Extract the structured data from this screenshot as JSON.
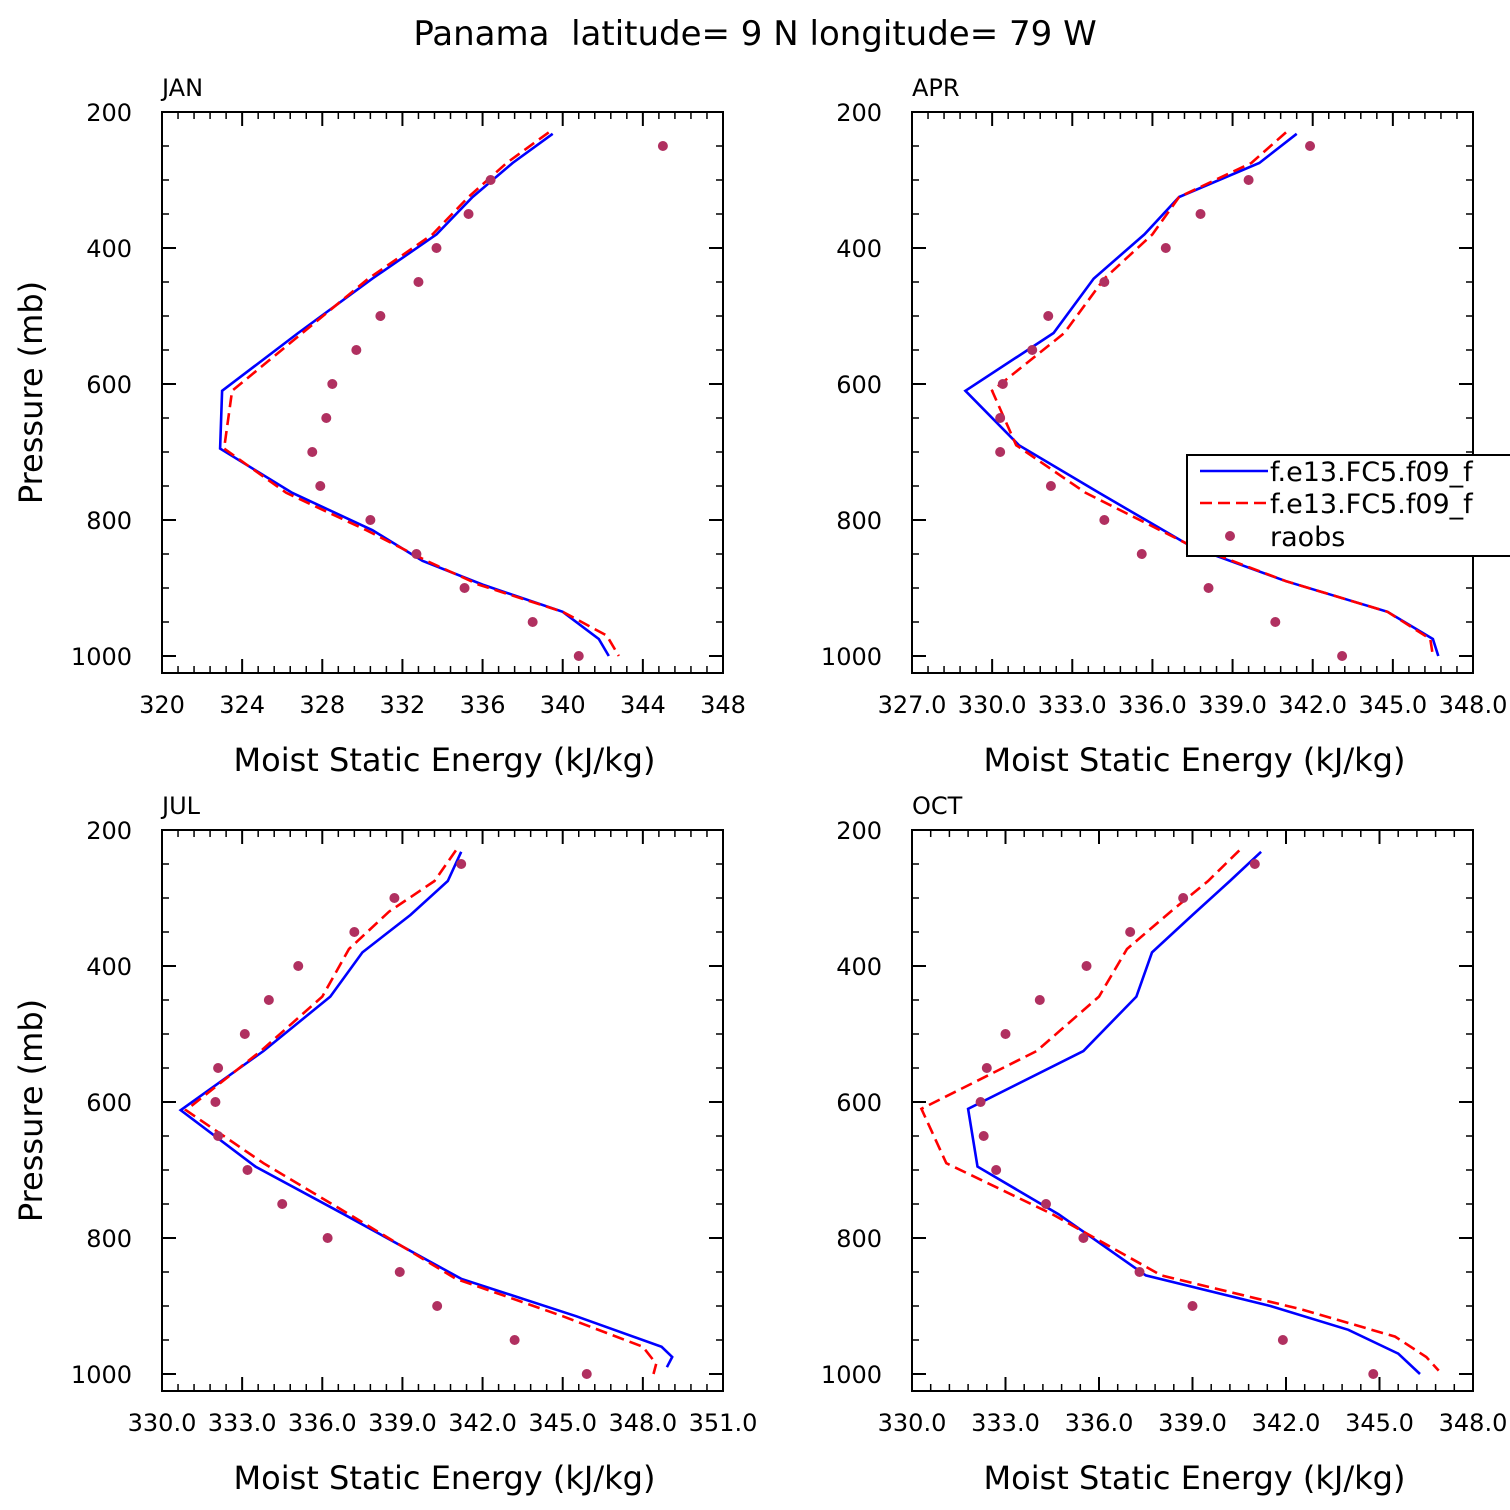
{
  "figure_title": "Panama  latitude= 9 N longitude= 79 W",
  "colors": {
    "model_1": "#0000ff",
    "model_2": "#ff0000",
    "raobs": "#b03060",
    "axes": "#000000"
  },
  "legend": {
    "entries": [
      "f.e13.FC5.f09_f",
      "f.e13.FC5.f09_f",
      "raobs"
    ]
  },
  "chart_data": [
    {
      "type": "line",
      "panel": "JAN",
      "title": "JAN",
      "xlabel": "Moist Static Energy (kJ/kg)",
      "ylabel": "Pressure (mb)",
      "xlim": [
        320,
        348
      ],
      "ylim": [
        1025,
        200
      ],
      "xticks": [
        320,
        324,
        328,
        332,
        336,
        340,
        344,
        348
      ],
      "xtick_labels": [
        "320",
        "324",
        "328",
        "332",
        "336",
        "340",
        "344",
        "348"
      ],
      "yticks": [
        200,
        400,
        600,
        800,
        1000
      ],
      "ytick_labels": [
        "200",
        "400",
        "600",
        "800",
        "1000"
      ],
      "series": [
        {
          "name": "f.e13.FC5.f09_f",
          "style": "solid",
          "points": [
            [
              339.5,
              232
            ],
            [
              337.5,
              275
            ],
            [
              335.5,
              325
            ],
            [
              333.7,
              380
            ],
            [
              330.5,
              445
            ],
            [
              326.8,
              525
            ],
            [
              323.0,
              610
            ],
            [
              322.9,
              695
            ],
            [
              326.5,
              760
            ],
            [
              330.5,
              815
            ],
            [
              333.0,
              860
            ],
            [
              336.0,
              895
            ],
            [
              340.0,
              935
            ],
            [
              341.8,
              975
            ],
            [
              342.3,
              1000
            ]
          ]
        },
        {
          "name": "f.e13.FC5.f09_f",
          "style": "dashed",
          "points": [
            [
              339.3,
              230
            ],
            [
              337.2,
              275
            ],
            [
              335.3,
              325
            ],
            [
              333.5,
              380
            ],
            [
              330.3,
              445
            ],
            [
              327.0,
              525
            ],
            [
              323.5,
              610
            ],
            [
              323.1,
              695
            ],
            [
              326.2,
              760
            ],
            [
              330.2,
              815
            ],
            [
              333.2,
              860
            ],
            [
              335.8,
              895
            ],
            [
              340.0,
              935
            ],
            [
              342.2,
              970
            ],
            [
              342.8,
              1000
            ]
          ]
        },
        {
          "name": "raobs",
          "style": "markers",
          "points": [
            [
              345.0,
              250
            ],
            [
              336.4,
              300
            ],
            [
              335.3,
              350
            ],
            [
              333.7,
              400
            ],
            [
              332.8,
              450
            ],
            [
              330.9,
              500
            ],
            [
              329.7,
              550
            ],
            [
              328.5,
              600
            ],
            [
              328.2,
              650
            ],
            [
              327.5,
              700
            ],
            [
              327.9,
              750
            ],
            [
              330.4,
              800
            ],
            [
              332.7,
              850
            ],
            [
              335.1,
              900
            ],
            [
              338.5,
              950
            ],
            [
              340.8,
              1000
            ]
          ]
        }
      ]
    },
    {
      "type": "line",
      "panel": "APR",
      "title": "APR",
      "xlabel": "Moist Static Energy (kJ/kg)",
      "ylabel": "",
      "xlim": [
        327,
        348
      ],
      "ylim": [
        1025,
        200
      ],
      "xticks": [
        327,
        330,
        333,
        336,
        339,
        342,
        345,
        348
      ],
      "xtick_labels": [
        "327.0",
        "330.0",
        "333.0",
        "336.0",
        "339.0",
        "342.0",
        "345.0",
        "348.0"
      ],
      "yticks": [
        200,
        400,
        600,
        800,
        1000
      ],
      "ytick_labels": [
        "200",
        "400",
        "600",
        "800",
        "1000"
      ],
      "series": [
        {
          "name": "f.e13.FC5.f09_f",
          "style": "solid",
          "points": [
            [
              341.4,
              232
            ],
            [
              340.0,
              275
            ],
            [
              337.0,
              325
            ],
            [
              335.7,
              380
            ],
            [
              333.8,
              445
            ],
            [
              332.3,
              525
            ],
            [
              329.0,
              610
            ],
            [
              331.0,
              690
            ],
            [
              334.0,
              760
            ],
            [
              337.5,
              840
            ],
            [
              341.0,
              890
            ],
            [
              344.8,
              935
            ],
            [
              346.5,
              975
            ],
            [
              346.7,
              1000
            ]
          ]
        },
        {
          "name": "f.e13.FC5.f09_f",
          "style": "dashed",
          "points": [
            [
              341.0,
              230
            ],
            [
              339.7,
              275
            ],
            [
              337.0,
              325
            ],
            [
              336.0,
              380
            ],
            [
              334.2,
              445
            ],
            [
              332.7,
              525
            ],
            [
              330.0,
              610
            ],
            [
              330.9,
              690
            ],
            [
              333.5,
              760
            ],
            [
              337.3,
              835
            ],
            [
              341.0,
              890
            ],
            [
              344.8,
              935
            ],
            [
              346.4,
              975
            ],
            [
              346.5,
              1000
            ]
          ]
        },
        {
          "name": "raobs",
          "style": "markers",
          "points": [
            [
              341.9,
              250
            ],
            [
              339.6,
              300
            ],
            [
              337.8,
              350
            ],
            [
              336.5,
              400
            ],
            [
              334.2,
              450
            ],
            [
              332.1,
              500
            ],
            [
              331.5,
              550
            ],
            [
              330.4,
              600
            ],
            [
              330.3,
              650
            ],
            [
              330.3,
              700
            ],
            [
              332.2,
              750
            ],
            [
              334.2,
              800
            ],
            [
              335.6,
              850
            ],
            [
              338.1,
              900
            ],
            [
              340.6,
              950
            ],
            [
              343.1,
              1000
            ]
          ]
        }
      ]
    },
    {
      "type": "line",
      "panel": "JUL",
      "title": "JUL",
      "xlabel": "Moist Static Energy (kJ/kg)",
      "ylabel": "Pressure (mb)",
      "xlim": [
        330,
        351
      ],
      "ylim": [
        1025,
        200
      ],
      "xticks": [
        330,
        333,
        336,
        339,
        342,
        345,
        348,
        351
      ],
      "xtick_labels": [
        "330.0",
        "333.0",
        "336.0",
        "339.0",
        "342.0",
        "345.0",
        "348.0",
        "351.0"
      ],
      "yticks": [
        200,
        400,
        600,
        800,
        1000
      ],
      "ytick_labels": [
        "200",
        "400",
        "600",
        "800",
        "1000"
      ],
      "series": [
        {
          "name": "f.e13.FC5.f09_f",
          "style": "solid",
          "points": [
            [
              341.2,
              232
            ],
            [
              340.7,
              275
            ],
            [
              339.3,
              325
            ],
            [
              337.5,
              380
            ],
            [
              336.3,
              445
            ],
            [
              333.8,
              525
            ],
            [
              330.7,
              612
            ],
            [
              333.5,
              695
            ],
            [
              336.8,
              765
            ],
            [
              341.2,
              860
            ],
            [
              345.5,
              915
            ],
            [
              348.7,
              960
            ],
            [
              349.1,
              975
            ],
            [
              348.9,
              990
            ]
          ]
        },
        {
          "name": "f.e13.FC5.f09_f",
          "style": "dashed",
          "points": [
            [
              341.0,
              230
            ],
            [
              340.2,
              275
            ],
            [
              338.5,
              320
            ],
            [
              337.0,
              375
            ],
            [
              336.0,
              445
            ],
            [
              333.7,
              525
            ],
            [
              330.9,
              612
            ],
            [
              333.8,
              690
            ],
            [
              337.0,
              765
            ],
            [
              341.0,
              860
            ],
            [
              345.0,
              915
            ],
            [
              348.0,
              960
            ],
            [
              348.5,
              985
            ],
            [
              348.4,
              1000
            ]
          ]
        },
        {
          "name": "raobs",
          "style": "markers",
          "points": [
            [
              341.2,
              250
            ],
            [
              338.7,
              300
            ],
            [
              337.2,
              350
            ],
            [
              335.1,
              400
            ],
            [
              334.0,
              450
            ],
            [
              333.1,
              500
            ],
            [
              332.1,
              550
            ],
            [
              332.0,
              600
            ],
            [
              332.1,
              650
            ],
            [
              333.2,
              700
            ],
            [
              334.5,
              750
            ],
            [
              336.2,
              800
            ],
            [
              338.9,
              850
            ],
            [
              340.3,
              900
            ],
            [
              343.2,
              950
            ],
            [
              345.9,
              1000
            ]
          ]
        }
      ]
    },
    {
      "type": "line",
      "panel": "OCT",
      "title": "OCT",
      "xlabel": "Moist Static Energy (kJ/kg)",
      "ylabel": "",
      "xlim": [
        330,
        348
      ],
      "ylim": [
        1025,
        200
      ],
      "xticks": [
        330,
        333,
        336,
        339,
        342,
        345,
        348
      ],
      "xtick_labels": [
        "330.0",
        "333.0",
        "336.0",
        "339.0",
        "342.0",
        "345.0",
        "348.0"
      ],
      "yticks": [
        200,
        400,
        600,
        800,
        1000
      ],
      "ytick_labels": [
        "200",
        "400",
        "600",
        "800",
        "1000"
      ],
      "series": [
        {
          "name": "f.e13.FC5.f09_f",
          "style": "solid",
          "points": [
            [
              341.2,
              232
            ],
            [
              340.2,
              275
            ],
            [
              339.0,
              325
            ],
            [
              337.7,
              380
            ],
            [
              337.2,
              445
            ],
            [
              335.5,
              525
            ],
            [
              331.8,
              610
            ],
            [
              332.1,
              695
            ],
            [
              334.7,
              765
            ],
            [
              337.5,
              855
            ],
            [
              341.5,
              900
            ],
            [
              344.0,
              935
            ],
            [
              345.6,
              970
            ],
            [
              346.3,
              1000
            ]
          ]
        },
        {
          "name": "f.e13.FC5.f09_f",
          "style": "dashed",
          "points": [
            [
              340.5,
              230
            ],
            [
              339.5,
              275
            ],
            [
              338.3,
              320
            ],
            [
              336.9,
              375
            ],
            [
              336.0,
              445
            ],
            [
              334.0,
              525
            ],
            [
              330.3,
              610
            ],
            [
              331.1,
              690
            ],
            [
              334.5,
              765
            ],
            [
              338.0,
              855
            ],
            [
              342.5,
              905
            ],
            [
              345.5,
              945
            ],
            [
              346.5,
              975
            ],
            [
              346.9,
              995
            ]
          ]
        },
        {
          "name": "raobs",
          "style": "markers",
          "points": [
            [
              341.0,
              250
            ],
            [
              338.7,
              300
            ],
            [
              337.0,
              350
            ],
            [
              335.6,
              400
            ],
            [
              334.1,
              450
            ],
            [
              333.0,
              500
            ],
            [
              332.4,
              550
            ],
            [
              332.2,
              600
            ],
            [
              332.3,
              650
            ],
            [
              332.7,
              700
            ],
            [
              334.3,
              750
            ],
            [
              335.5,
              800
            ],
            [
              337.3,
              850
            ],
            [
              339.0,
              900
            ],
            [
              341.9,
              950
            ],
            [
              344.8,
              1000
            ]
          ]
        }
      ]
    }
  ]
}
